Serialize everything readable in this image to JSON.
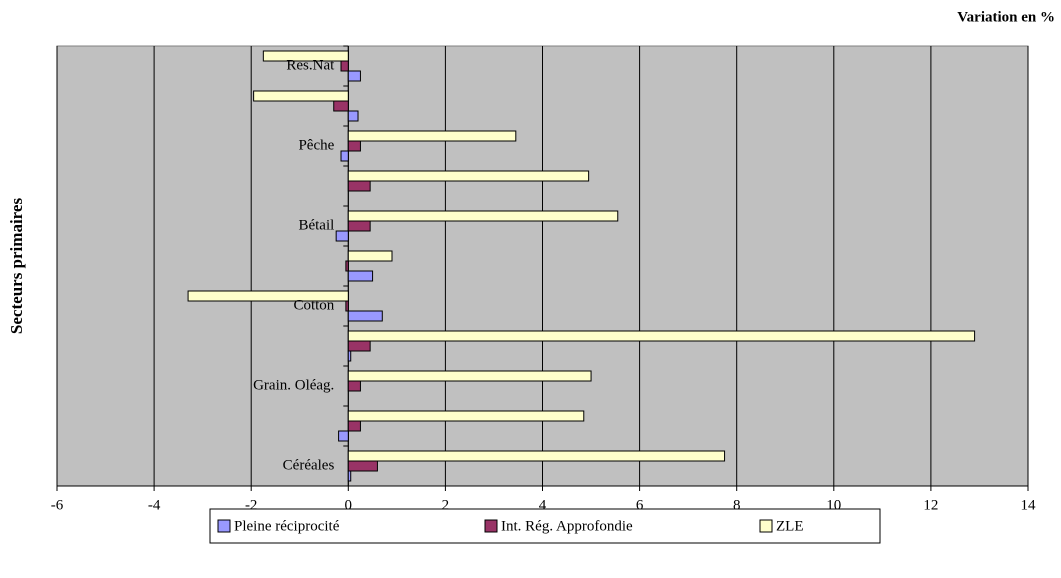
{
  "chart_data": {
    "type": "hbar",
    "title": "Variation en %",
    "y_label": "Secteurs primaires",
    "categories": [
      "Céréales",
      null,
      "Grain. Oléag.",
      null,
      "Cotton",
      null,
      "Bétail",
      null,
      "Pêche",
      null,
      "Res.Nat"
    ],
    "series": [
      {
        "name": "Pleine réciprocité",
        "color": "#9999ff",
        "values": [
          0.05,
          -0.2,
          0,
          0.05,
          0.7,
          0.5,
          -0.25,
          0,
          -0.15,
          0.2,
          0.25
        ]
      },
      {
        "name": "Int. Rég. Approfondie",
        "color": "#993366",
        "values": [
          0.6,
          0.25,
          0.25,
          0.45,
          -0.05,
          -0.05,
          0.45,
          0.45,
          0.25,
          -0.3,
          -0.15
        ]
      },
      {
        "name": "ZLE",
        "color": "#ffffcc",
        "values": [
          7.75,
          4.85,
          5.0,
          12.9,
          -3.3,
          0.9,
          5.55,
          4.95,
          3.45,
          -1.95,
          -1.75
        ]
      }
    ],
    "xlim": [
      -6,
      14
    ],
    "xticks": [
      -6,
      -4,
      -2,
      0,
      2,
      4,
      6,
      8,
      10,
      12,
      14
    ],
    "grid": true
  }
}
